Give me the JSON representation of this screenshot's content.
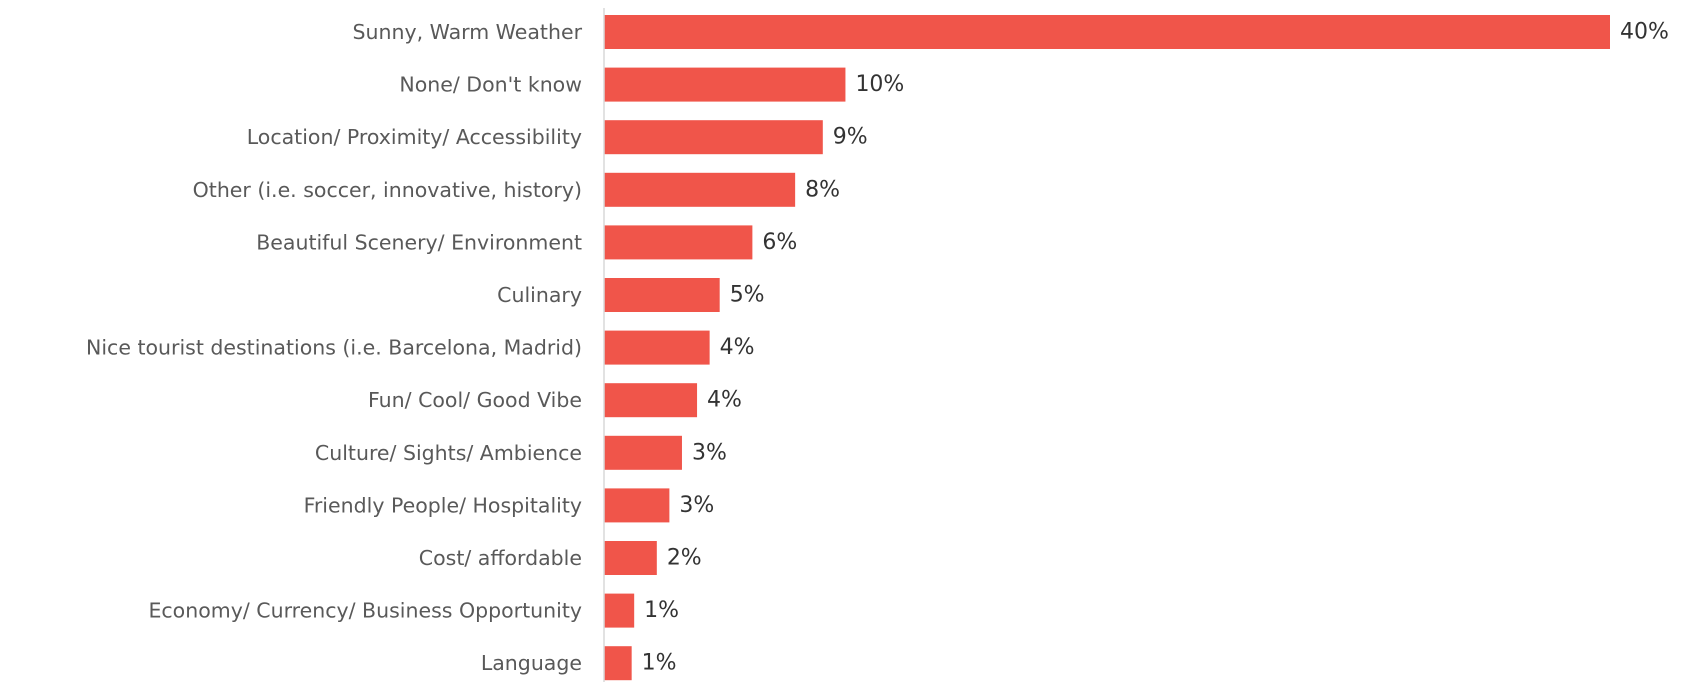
{
  "chart_data": {
    "type": "bar",
    "orientation": "horizontal",
    "title": "",
    "xlabel": "",
    "ylabel": "",
    "xlim": [
      0,
      40
    ],
    "grid": false,
    "legend": "none",
    "bar_color": "#F0554A",
    "categories": [
      "Sunny, Warm Weather",
      "None/ Don't know",
      "Location/ Proximity/ Accessibility",
      "Other (i.e. soccer, innovative, history)",
      "Beautiful Scenery/ Environment",
      "Culinary",
      "Nice tourist destinations (i.e. Barcelona, Madrid)",
      "Fun/ Cool/ Good Vibe",
      "Culture/ Sights/ Ambience",
      "Friendly People/ Hospitality",
      "Cost/ affordable",
      "Economy/ Currency/ Business Opportunity",
      "Language"
    ],
    "values": [
      40,
      9.6,
      8.7,
      7.6,
      5.9,
      4.6,
      4.2,
      3.7,
      3.1,
      2.6,
      2.1,
      1.2,
      1.1
    ],
    "value_labels": [
      "40%",
      "10%",
      "9%",
      "8%",
      "6%",
      "5%",
      "4%",
      "4%",
      "3%",
      "3%",
      "2%",
      "1%",
      "1%"
    ]
  }
}
